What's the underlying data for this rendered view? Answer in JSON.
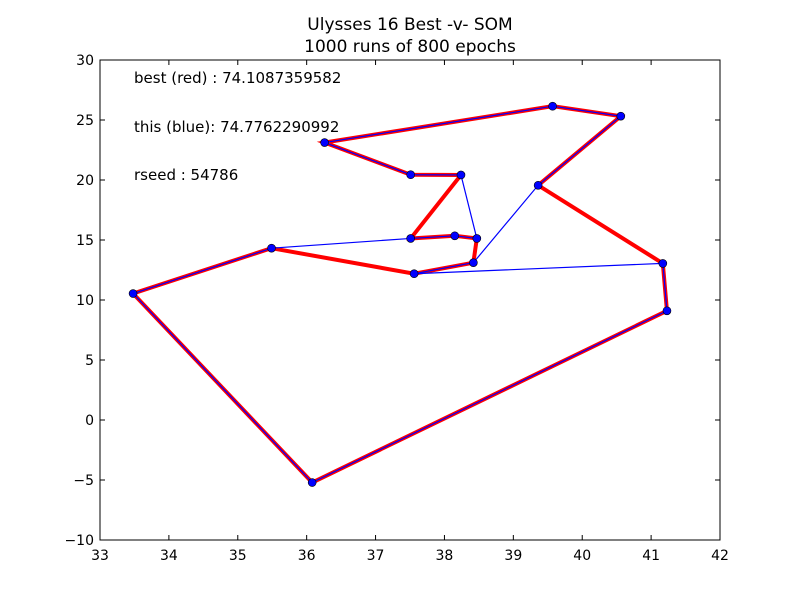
{
  "chart_data": {
    "type": "line",
    "title": "Ulysses 16 Best -v- SOM",
    "subtitle": "1000 runs of 800 epochs",
    "xlabel": "",
    "ylabel": "",
    "xlim": [
      33,
      42
    ],
    "ylim": [
      -10,
      30
    ],
    "xticks": [
      33,
      34,
      35,
      36,
      37,
      38,
      39,
      40,
      41,
      42
    ],
    "yticks": [
      -10,
      -5,
      0,
      5,
      10,
      15,
      20,
      25,
      30
    ],
    "xtick_labels": [
      "33",
      "34",
      "35",
      "36",
      "37",
      "38",
      "39",
      "40",
      "41",
      "42"
    ],
    "ytick_labels": [
      "−10",
      "−5",
      "0",
      "5",
      "10",
      "15",
      "20",
      "25",
      "30"
    ],
    "grid": false,
    "legend": "none",
    "annotations": [
      "best (red) : 74.1087359582",
      "this (blue): 74.7762290992",
      "rseed : 54786"
    ],
    "series": [
      {
        "color": "#ff0000",
        "points": [
          [
            33.48,
            10.54
          ],
          [
            36.08,
            -5.21
          ],
          [
            41.23,
            9.1
          ],
          [
            41.17,
            13.05
          ],
          [
            39.36,
            19.56
          ],
          [
            40.56,
            25.32
          ],
          [
            39.57,
            26.15
          ],
          [
            36.26,
            23.12
          ],
          [
            37.51,
            20.44
          ],
          [
            38.24,
            20.42
          ],
          [
            37.51,
            15.13
          ],
          [
            38.15,
            15.35
          ],
          [
            38.47,
            15.13
          ],
          [
            38.42,
            13.11
          ],
          [
            37.56,
            12.19
          ],
          [
            35.49,
            14.32
          ],
          [
            33.48,
            10.54
          ]
        ]
      },
      {
        "color": "#0000ff",
        "points": [
          [
            33.48,
            10.54
          ],
          [
            36.08,
            -5.21
          ],
          [
            41.23,
            9.1
          ],
          [
            41.17,
            13.05
          ],
          [
            37.56,
            12.19
          ],
          [
            38.42,
            13.11
          ],
          [
            39.36,
            19.56
          ],
          [
            40.56,
            25.32
          ],
          [
            39.57,
            26.15
          ],
          [
            36.26,
            23.12
          ],
          [
            37.51,
            20.44
          ],
          [
            38.24,
            20.42
          ],
          [
            38.47,
            15.13
          ],
          [
            38.15,
            15.35
          ],
          [
            37.51,
            15.13
          ],
          [
            35.49,
            14.32
          ],
          [
            33.48,
            10.54
          ]
        ]
      }
    ]
  }
}
